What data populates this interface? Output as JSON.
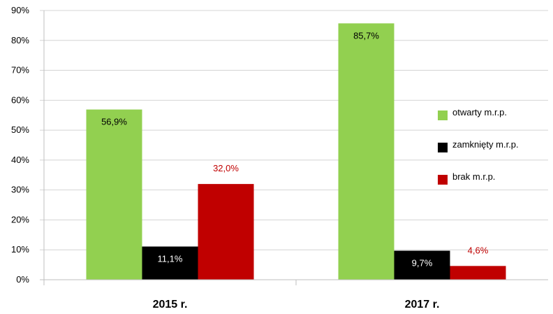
{
  "chart_data": {
    "type": "bar",
    "categories": [
      "2015 r.",
      "2017 r."
    ],
    "series": [
      {
        "name": "otwarty m.r.p.",
        "values": [
          56.9,
          85.7
        ],
        "labels": [
          "56,9%",
          "85,7%"
        ],
        "color": "#92d050",
        "label_color": "#000000"
      },
      {
        "name": "zamknięty m.r.p.",
        "values": [
          11.1,
          9.7
        ],
        "labels": [
          "11,1%",
          "9,7%"
        ],
        "color": "#000000",
        "label_color": "#ffffff"
      },
      {
        "name": "brak m.r.p.",
        "values": [
          32.0,
          4.6
        ],
        "labels": [
          "32,0%",
          "4,6%"
        ],
        "color": "#c00000",
        "label_color": "#c00000"
      }
    ],
    "yticks": [
      "0%",
      "10%",
      "20%",
      "30%",
      "40%",
      "50%",
      "60%",
      "70%",
      "80%",
      "90%"
    ],
    "ylim": [
      0,
      90
    ],
    "grid": true,
    "legend_position": "right"
  }
}
